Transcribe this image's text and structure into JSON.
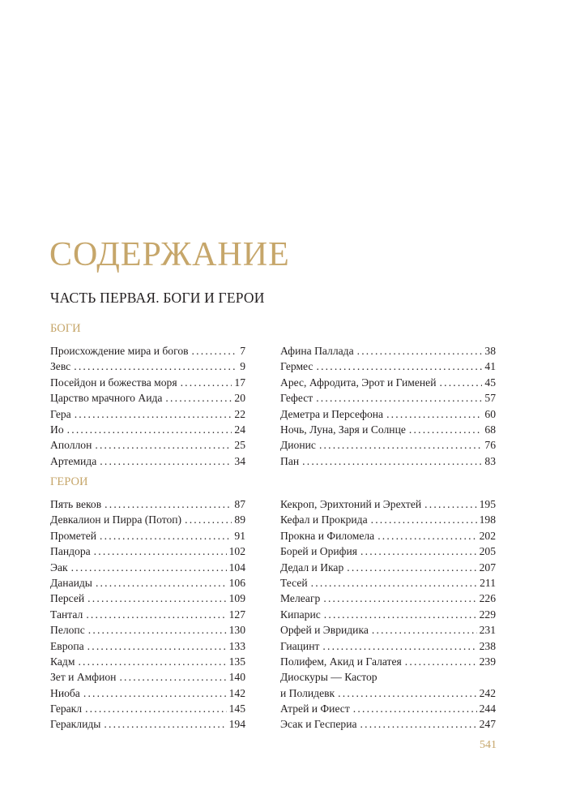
{
  "title": "СОДЕРЖАНИЕ",
  "part": "ЧАСТЬ ПЕРВАЯ. БОГИ И ГЕРОИ",
  "accent_color": "#c6a66a",
  "sections": [
    {
      "heading": "БОГИ",
      "left": [
        {
          "title": "Происхождение мира и богов",
          "page": "7"
        },
        {
          "title": "Зевс",
          "page": "9"
        },
        {
          "title": "Посейдон и божества моря",
          "page": "17"
        },
        {
          "title": "Царство мрачного Аида",
          "page": "20"
        },
        {
          "title": "Гера",
          "page": "22"
        },
        {
          "title": "Ио",
          "page": "24"
        },
        {
          "title": "Аполлон",
          "page": "25"
        },
        {
          "title": "Артемида",
          "page": "34"
        }
      ],
      "right": [
        {
          "title": "Афина Паллада",
          "page": "38"
        },
        {
          "title": "Гермес",
          "page": "41"
        },
        {
          "title": "Арес, Афродита, Эрот и Гименей",
          "page": "45"
        },
        {
          "title": "Гефест",
          "page": "57"
        },
        {
          "title": "Деметра и Персефона",
          "page": "60"
        },
        {
          "title": "Ночь, Луна, Заря и Солнце",
          "page": "68"
        },
        {
          "title": "Дионис",
          "page": "76"
        },
        {
          "title": "Пан",
          "page": "83"
        }
      ]
    },
    {
      "heading": "ГЕРОИ",
      "left": [
        {
          "title": "Пять веков",
          "page": "87"
        },
        {
          "title": "Девкалион и Пирра (Потоп)",
          "page": "89"
        },
        {
          "title": "Прометей",
          "page": "91"
        },
        {
          "title": "Пандора",
          "page": "102"
        },
        {
          "title": "Эак",
          "page": "104"
        },
        {
          "title": "Данаиды",
          "page": "106"
        },
        {
          "title": "Персей",
          "page": "109"
        },
        {
          "title": "Тантал",
          "page": "127"
        },
        {
          "title": "Пелопс",
          "page": "130"
        },
        {
          "title": "Европа",
          "page": "133"
        },
        {
          "title": "Кадм",
          "page": "135"
        },
        {
          "title": "Зет и Амфион",
          "page": "140"
        },
        {
          "title": "Ниоба",
          "page": "142"
        },
        {
          "title": "Геракл",
          "page": "145"
        },
        {
          "title": "Гераклиды",
          "page": "194"
        }
      ],
      "right": [
        {
          "title": "Кекроп, Эрихтоний и Эрехтей",
          "page": "195"
        },
        {
          "title": "Кефал и Прокрида",
          "page": "198"
        },
        {
          "title": "Прокна и Филомела",
          "page": "202"
        },
        {
          "title": "Борей и Орифия",
          "page": "205"
        },
        {
          "title": "Дедал и Икар",
          "page": "207"
        },
        {
          "title": "Тесей",
          "page": "211"
        },
        {
          "title": "Мелеагр",
          "page": "226"
        },
        {
          "title": "Кипарис",
          "page": "229"
        },
        {
          "title": "Орфей и Эвридика",
          "page": "231"
        },
        {
          "title": "Гиацинт",
          "page": "238"
        },
        {
          "title": "Полифем, Акид и Галатея",
          "page": "239"
        },
        {
          "title": "Диоскуры — Кастор",
          "page": ""
        },
        {
          "title": "и Полидевк",
          "page": "242"
        },
        {
          "title": "Атрей и Фиест",
          "page": "244"
        },
        {
          "title": "Эсак и Геспериа",
          "page": "247"
        }
      ]
    }
  ],
  "page_number": "541"
}
